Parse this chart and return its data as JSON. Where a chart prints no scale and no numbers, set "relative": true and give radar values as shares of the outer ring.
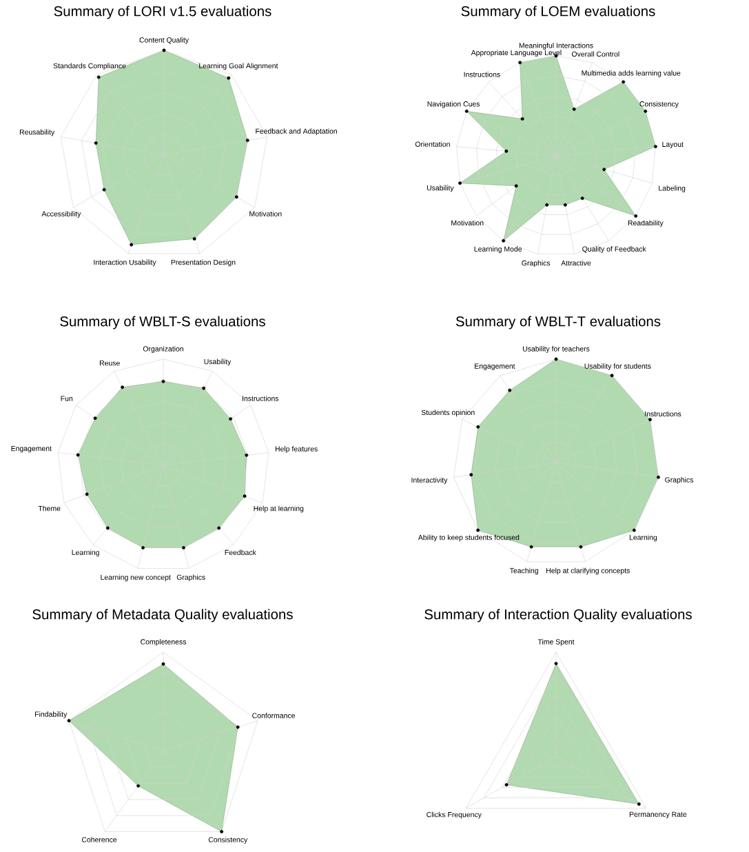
{
  "chart_data": [
    {
      "type": "radar",
      "title": "Summary of LORI v1.5 evaluations",
      "categories": [
        "Content Quality",
        "Learning Goal Alignment",
        "Feedback and Adaptation",
        "Motivation",
        "Presentation Design",
        "Interaction Usability",
        "Accessibility",
        "Reusability",
        "Standards Compliance"
      ],
      "relative": true,
      "grid": true,
      "marker": "circle",
      "series": [
        {
          "color": "#b2dab0",
          "values": [
            1.0,
            0.96,
            0.81,
            0.8,
            0.85,
            0.91,
            0.66,
            0.66,
            0.97
          ]
        }
      ]
    },
    {
      "type": "radar",
      "title": "Summary of LOEM evaluations",
      "categories": [
        "Meaningful Interactions",
        "Overall Control",
        "Multimedia adds learning value",
        "Consistency",
        "Layout",
        "Labeling",
        "Readability",
        "Quality of Feedback",
        "Attractive",
        "Graphics",
        "Learning Mode",
        "Motivation",
        "Usability",
        "Orientation",
        "Navigation Cues",
        "Instructions",
        "Appropriate Language Level"
      ],
      "relative": true,
      "grid": true,
      "marker": "circle",
      "series": [
        {
          "color": "#b2dab0",
          "values": [
            1.0,
            0.5,
            1.0,
            1.0,
            1.0,
            0.5,
            1.0,
            0.5,
            0.5,
            0.5,
            1.0,
            0.5,
            1.0,
            0.5,
            1.0,
            0.5,
            1.0
          ]
        }
      ]
    },
    {
      "type": "radar",
      "title": "Summary of WBLT-S evaluations",
      "categories": [
        "Organization",
        "Usability",
        "Instructions",
        "Help features",
        "Help at learning",
        "Feedback",
        "Graphics",
        "Learning new concept",
        "Learning",
        "Theme",
        "Engagement",
        "Fun",
        "Reuse"
      ],
      "relative": true,
      "grid": true,
      "marker": "circle",
      "series": [
        {
          "color": "#b2dab0",
          "values": [
            0.79,
            0.82,
            0.77,
            0.79,
            0.82,
            0.79,
            0.8,
            0.8,
            0.79,
            0.77,
            0.81,
            0.78,
            0.83
          ]
        }
      ]
    },
    {
      "type": "radar",
      "title": "Summary of WBLT-T evaluations",
      "categories": [
        "Usability for teachers",
        "Usability for students",
        "Instructions",
        "Graphics",
        "Learning",
        "Help at clarifying concepts",
        "Teaching",
        "Ability to keep students focused",
        "Interactivity",
        "Students opinion",
        "Engagement"
      ],
      "relative": true,
      "grid": true,
      "marker": "circle",
      "series": [
        {
          "color": "#b2dab0",
          "values": [
            1.0,
            1.0,
            1.0,
            1.0,
            1.0,
            0.85,
            0.85,
            1.0,
            0.83,
            0.83,
            0.83
          ]
        }
      ]
    },
    {
      "type": "radar",
      "title": "Summary of Metadata Quality evaluations",
      "categories": [
        "Completeness",
        "Conformance",
        "Consistency",
        "Coherence",
        "Findability"
      ],
      "relative": true,
      "grid": true,
      "marker": "circle",
      "series": [
        {
          "color": "#b2dab0",
          "values": [
            0.88,
            0.79,
            1.0,
            0.43,
            1.0
          ]
        }
      ]
    },
    {
      "type": "radar",
      "title": "Summary of Interaction Quality evaluations",
      "categories": [
        "Time Spent",
        "Permanency Rate",
        "Clicks Frequency"
      ],
      "relative": true,
      "grid": true,
      "marker": "circle",
      "series": [
        {
          "color": "#b2dab0",
          "values": [
            0.89,
            0.92,
            0.55
          ]
        }
      ]
    }
  ]
}
